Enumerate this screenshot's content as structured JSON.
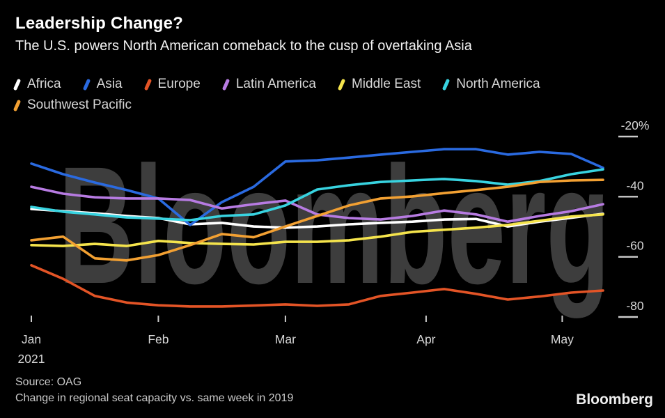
{
  "header": {
    "title": "Leadership Change?",
    "subtitle": "The U.S. powers North American comeback to the cusp of overtaking Asia"
  },
  "watermark": "Bloomberg",
  "footer": {
    "source": "Source: OAG",
    "note": "Change in regional seat capacity vs. same week in 2019",
    "logo": "Bloomberg"
  },
  "colors": {
    "background": "#000000",
    "watermark": "#3d3d3d",
    "axis_text": "#d6d6d6",
    "tick_mark": "#cccccc",
    "legend_text": "#d9d9d9"
  },
  "chart_data": {
    "type": "line",
    "title": "Leadership Change?",
    "subtitle": "The U.S. powers North American comeback to the cusp of overtaking Asia",
    "unit": "% change vs. same week in 2019",
    "x_axis": {
      "tick_labels": [
        "Jan",
        "Feb",
        "Mar",
        "Apr",
        "May"
      ],
      "year_label": "2021",
      "tick_day_offsets": [
        0,
        28,
        56,
        87,
        117
      ],
      "total_days_span": 126,
      "points_cadence": "weekly"
    },
    "y_axis": {
      "tick_values": [
        -20,
        -40,
        -60,
        -80
      ],
      "tick_labels": [
        "-20%",
        "-40",
        "-60",
        "-80"
      ],
      "range": [
        -80,
        -20
      ],
      "side": "right"
    },
    "legend_position": "top",
    "grid": false,
    "series": [
      {
        "name": "Africa",
        "color": "#ffffff",
        "values": [
          -44.1,
          -44.8,
          -45.5,
          -46.4,
          -47.1,
          -49.2,
          -48.7,
          -49.9,
          -50.3,
          -49.9,
          -49.2,
          -48.7,
          -48.3,
          -47.6,
          -47.4,
          -49.9,
          -48.3,
          -47.0,
          -45.7
        ]
      },
      {
        "name": "Asia",
        "color": "#2a6ae0",
        "values": [
          -29.0,
          -32.5,
          -35.3,
          -37.8,
          -40.6,
          -49.4,
          -41.8,
          -36.7,
          -28.3,
          -27.9,
          -27.0,
          -26.0,
          -25.1,
          -24.2,
          -24.2,
          -26.0,
          -25.1,
          -25.8,
          -30.4
        ]
      },
      {
        "name": "Europe",
        "color": "#e35426",
        "values": [
          -62.8,
          -67.3,
          -73.0,
          -75.2,
          -76.1,
          -76.5,
          -76.5,
          -76.2,
          -75.8,
          -76.3,
          -75.8,
          -73.0,
          -71.9,
          -70.7,
          -72.3,
          -74.2,
          -73.2,
          -71.9,
          -71.2
        ]
      },
      {
        "name": "Latin America",
        "color": "#b77be2",
        "values": [
          -36.7,
          -39.0,
          -40.2,
          -40.6,
          -40.6,
          -41.1,
          -43.9,
          -42.5,
          -41.3,
          -45.9,
          -47.1,
          -47.6,
          -46.4,
          -44.6,
          -45.9,
          -48.3,
          -46.4,
          -44.8,
          -42.5
        ]
      },
      {
        "name": "Middle East",
        "color": "#f5e44c",
        "values": [
          -56.1,
          -56.4,
          -55.7,
          -56.4,
          -54.7,
          -55.4,
          -55.7,
          -55.9,
          -55.0,
          -55.0,
          -54.5,
          -53.3,
          -51.7,
          -51.0,
          -50.3,
          -49.4,
          -48.0,
          -46.6,
          -45.9
        ]
      },
      {
        "name": "North America",
        "color": "#38d3e0",
        "values": [
          -43.4,
          -45.0,
          -45.9,
          -46.9,
          -47.3,
          -47.8,
          -46.4,
          -45.9,
          -42.9,
          -37.6,
          -36.2,
          -35.1,
          -34.6,
          -34.1,
          -34.8,
          -36.0,
          -34.8,
          -32.5,
          -30.9
        ]
      },
      {
        "name": "Southwest Pacific",
        "color": "#f2a032",
        "values": [
          -54.5,
          -53.3,
          -60.5,
          -61.2,
          -59.4,
          -56.1,
          -52.4,
          -53.5,
          -49.9,
          -46.4,
          -42.9,
          -40.6,
          -39.9,
          -38.8,
          -37.8,
          -36.7,
          -35.1,
          -34.6,
          -34.4
        ]
      }
    ]
  }
}
